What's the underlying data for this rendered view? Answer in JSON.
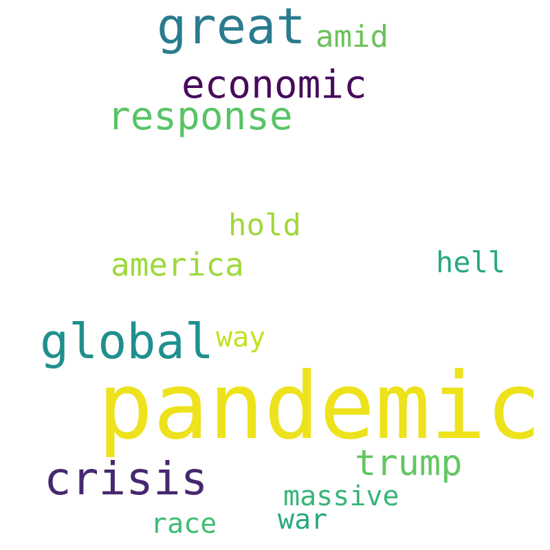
{
  "words": [
    {
      "text": "great",
      "color": "#2a7b8e"
    },
    {
      "text": "amid",
      "color": "#6cc15a"
    },
    {
      "text": "economic",
      "color": "#470b5c"
    },
    {
      "text": "response",
      "color": "#58c465"
    },
    {
      "text": "hold",
      "color": "#a0d83a"
    },
    {
      "text": "america",
      "color": "#9dd93b"
    },
    {
      "text": "hell",
      "color": "#27a882"
    },
    {
      "text": "global",
      "color": "#1f908d"
    },
    {
      "text": "way",
      "color": "#c5e021"
    },
    {
      "text": "pandemic",
      "color": "#ede21b"
    },
    {
      "text": "trump",
      "color": "#62c761"
    },
    {
      "text": "crisis",
      "color": "#46286f"
    },
    {
      "text": "massive",
      "color": "#37b578"
    },
    {
      "text": "race",
      "color": "#3fbc73"
    },
    {
      "text": "war",
      "color": "#2aa880"
    }
  ]
}
